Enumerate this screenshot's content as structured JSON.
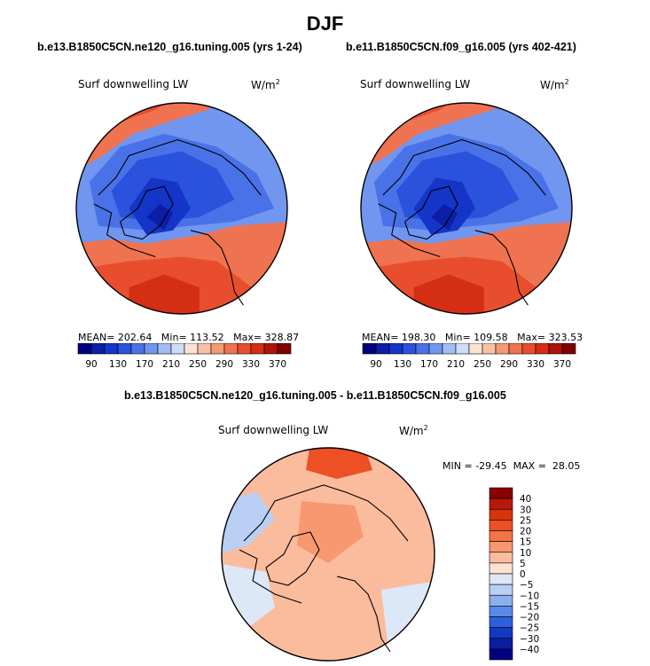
{
  "title": "DJF",
  "chart_data": [
    {
      "type": "heatmap",
      "projection": "polar stereographic (north)",
      "subtitle": "b.e13.B1850C5CN.ne120_g16.tuning.005 (yrs 1-24)",
      "variable": "Surf downwelling LW",
      "units": "W/m",
      "units_exp": "2",
      "mean_label": "MEAN=",
      "mean": "202.64",
      "min_label": "Min=",
      "min": "113.52",
      "max_label": "Max=",
      "max": "328.87",
      "colorbar_ticks": [
        "90",
        "130",
        "170",
        "210",
        "250",
        "290",
        "330",
        "370"
      ],
      "colorbar_colors": [
        "#000080",
        "#0c1ea6",
        "#1535c8",
        "#2a52dc",
        "#4a72e8",
        "#7096f0",
        "#a3bdf4",
        "#cfdcf6",
        "#fbe3d4",
        "#f8c1a4",
        "#f49a76",
        "#ef7350",
        "#e84e2e",
        "#d42e14",
        "#ac140a",
        "#800000"
      ]
    },
    {
      "type": "heatmap",
      "projection": "polar stereographic (north)",
      "subtitle": "b.e11.B1850C5CN.f09_g16.005 (yrs 402-421)",
      "variable": "Surf downwelling LW",
      "units": "W/m",
      "units_exp": "2",
      "mean_label": "MEAN=",
      "mean": "198.30",
      "min_label": "Min=",
      "min": "109.58",
      "max_label": "Max=",
      "max": "323.53",
      "colorbar_ticks": [
        "90",
        "130",
        "170",
        "210",
        "250",
        "290",
        "330",
        "370"
      ],
      "colorbar_colors": [
        "#000080",
        "#0c1ea6",
        "#1535c8",
        "#2a52dc",
        "#4a72e8",
        "#7096f0",
        "#a3bdf4",
        "#cfdcf6",
        "#fbe3d4",
        "#f8c1a4",
        "#f49a76",
        "#ef7350",
        "#e84e2e",
        "#d42e14",
        "#ac140a",
        "#800000"
      ]
    },
    {
      "type": "heatmap",
      "projection": "polar stereographic (north)",
      "subtitle": "b.e13.B1850C5CN.ne120_g16.tuning.005 - b.e11.B1850C5CN.f09_g16.005",
      "variable": "Surf downwelling LW",
      "units": "W/m",
      "units_exp": "2",
      "min_label": "MIN =",
      "min": "-29.45",
      "max_label": "MAX =",
      "max": "28.05",
      "colorbar_ticks": [
        "40",
        "30",
        "25",
        "20",
        "15",
        "10",
        "5",
        "0",
        "−5",
        "−10",
        "−15",
        "−20",
        "−25",
        "−30",
        "−40"
      ],
      "colorbar_colors": [
        "#8b0000",
        "#b51a08",
        "#d8340c",
        "#ec5024",
        "#f57344",
        "#f89870",
        "#fbbc9e",
        "#fde2d0",
        "#dce8f8",
        "#b9cff4",
        "#8ab0ee",
        "#5a8ae6",
        "#2e60de",
        "#1438c4",
        "#0a1ea0",
        "#000080"
      ]
    }
  ]
}
